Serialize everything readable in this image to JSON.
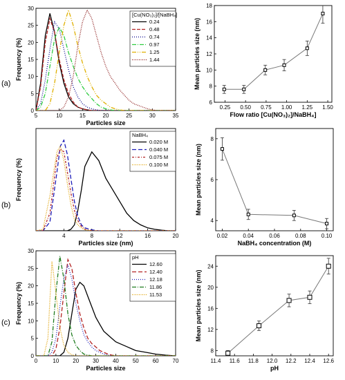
{
  "panel_labels": [
    "(a)",
    "(b)",
    "(c)"
  ],
  "chart_data": [
    {
      "type": "line",
      "xlabel": "Particles size",
      "ylabel": "Frequency (%)",
      "xlim": [
        5,
        35
      ],
      "ylim": [
        0,
        30
      ],
      "xticks": [
        5,
        10,
        15,
        20,
        25,
        30,
        35
      ],
      "yticks": [
        0,
        5,
        10,
        15,
        20,
        25,
        30
      ],
      "legend_title": "[Cu(NO₃)₂]/[NaBH₄]",
      "legend_position": "top-right",
      "x": [
        5,
        6,
        7,
        8,
        9,
        10,
        11,
        12,
        13,
        14,
        15,
        16,
        17,
        18,
        19,
        20,
        21,
        22,
        23,
        24,
        25,
        26,
        27,
        28,
        29,
        30,
        31,
        32,
        33,
        34,
        35
      ],
      "series": [
        {
          "name": "0.24",
          "color": "#000000",
          "dash": "",
          "values": [
            0,
            8,
            22,
            28.5,
            23,
            14,
            8,
            4,
            2,
            1,
            0.5,
            0.2,
            0,
            0,
            0,
            0,
            0,
            0,
            0,
            0,
            0,
            0,
            0,
            0,
            0,
            0,
            0,
            0,
            0,
            0,
            0
          ]
        },
        {
          "name": "0.48",
          "color": "#b22222",
          "dash": "5,2",
          "values": [
            0,
            7,
            20,
            27,
            23,
            15,
            9,
            5,
            2.5,
            1,
            0.5,
            0.2,
            0,
            0,
            0,
            0,
            0,
            0,
            0,
            0,
            0,
            0,
            0,
            0,
            0,
            0,
            0,
            0,
            0,
            0,
            0
          ]
        },
        {
          "name": "0.74",
          "color": "#00008b",
          "dash": "1,2",
          "values": [
            0,
            2,
            9,
            18,
            26,
            24,
            18,
            12,
            7,
            4,
            2,
            1,
            0.5,
            0.2,
            0,
            0,
            0,
            0,
            0,
            0,
            0,
            0,
            0,
            0,
            0,
            0,
            0,
            0,
            0,
            0,
            0
          ]
        },
        {
          "name": "0.97",
          "color": "#2ecc40",
          "dash": "6,2,1,2",
          "values": [
            0,
            1,
            5,
            13,
            21,
            24.5,
            22,
            17,
            13,
            9.5,
            7,
            5,
            3.5,
            2,
            1,
            0.5,
            0.2,
            0,
            0,
            0,
            0,
            0,
            0,
            0,
            0,
            0,
            0,
            0,
            0,
            0,
            0
          ]
        },
        {
          "name": "1.25",
          "color": "#e0b000",
          "dash": "6,2,1,2,1,2",
          "values": [
            0,
            0,
            0,
            2,
            8,
            17,
            25,
            29.5,
            25,
            19,
            14,
            10,
            7,
            4.5,
            3,
            2,
            1,
            0.5,
            0.2,
            0,
            0,
            0,
            0,
            0,
            0,
            0,
            0,
            0,
            0,
            0,
            0
          ]
        },
        {
          "name": "1.44",
          "color": "#8b1a1a",
          "dash": "1,1.5",
          "values": [
            0,
            0,
            0,
            0,
            0,
            0,
            1,
            4,
            10,
            19,
            26,
            29.5,
            27,
            22,
            17,
            13,
            10,
            8,
            6,
            4.5,
            3,
            2,
            1.5,
            1,
            0.5,
            0.2,
            0,
            0,
            0,
            0,
            0
          ]
        }
      ]
    },
    {
      "type": "line",
      "xlabel": "Flow ratio [Cu(NO₃)₂]/NaBH₄]",
      "ylabel": "Mean particles size (nm)",
      "xlim": [
        0.12,
        1.55
      ],
      "ylim": [
        6,
        18
      ],
      "xticks": [
        0.25,
        0.5,
        0.75,
        1.0,
        1.25,
        1.5
      ],
      "xtick_labels": [
        "0.25",
        "0.50",
        "0.75",
        "1.00",
        "1.25",
        "1.50"
      ],
      "yticks": [
        6,
        8,
        10,
        12,
        14,
        16,
        18
      ],
      "series": [
        {
          "x": [
            0.24,
            0.48,
            0.74,
            0.97,
            1.25,
            1.44
          ],
          "values": [
            7.6,
            7.6,
            10.0,
            10.6,
            12.7,
            17.0
          ],
          "error": [
            0.5,
            0.5,
            0.6,
            0.7,
            0.9,
            1.2
          ]
        }
      ]
    },
    {
      "type": "line",
      "xlabel": "Particles size (nm)",
      "ylabel": "Frequency (%)",
      "xlim": [
        0,
        20
      ],
      "ylim": [
        0,
        35
      ],
      "xticks": [
        4,
        8,
        12,
        16,
        20
      ],
      "yticks": [],
      "legend_title": "NaBH₄",
      "legend_position": "top-right",
      "x": [
        0,
        1,
        2,
        3,
        3.5,
        4,
        4.5,
        5,
        5.5,
        6,
        6.5,
        7,
        8,
        9,
        10,
        11,
        12,
        13,
        14,
        15,
        16,
        17,
        18,
        19,
        20
      ],
      "series": [
        {
          "name": "0.020 M",
          "color": "#000000",
          "dash": "",
          "values": [
            0,
            0,
            0,
            0,
            0,
            0,
            0,
            0.5,
            2,
            7,
            14,
            22,
            27,
            24,
            18,
            14,
            10,
            6,
            3.5,
            2,
            1,
            0.5,
            0.2,
            0,
            0
          ]
        },
        {
          "name": "0.040 M",
          "color": "#1c1cb8",
          "dash": "6,3",
          "values": [
            0,
            0,
            3,
            20,
            29,
            31,
            26,
            18,
            10,
            5,
            2,
            1,
            0.3,
            0,
            0,
            0,
            0,
            0,
            0,
            0,
            0,
            0,
            0,
            0,
            0
          ]
        },
        {
          "name": "0.075 M",
          "color": "#b22222",
          "dash": "3,2,1,2",
          "values": [
            0,
            0,
            6,
            25,
            28,
            27,
            20,
            13,
            7,
            3.5,
            1.5,
            0.5,
            0,
            0,
            0,
            0,
            0,
            0,
            0,
            0,
            0,
            0,
            0,
            0,
            0
          ]
        },
        {
          "name": "0.100 M",
          "color": "#e0a000",
          "dash": "1,1.5",
          "values": [
            0,
            0.5,
            12,
            27,
            29,
            24,
            16,
            9,
            4,
            2,
            1,
            0.3,
            0,
            0,
            0,
            0,
            0,
            0,
            0,
            0,
            0,
            0,
            0,
            0,
            0
          ]
        }
      ]
    },
    {
      "type": "line",
      "xlabel": "NaBH₄ concentration (M)",
      "ylabel": "Mean particles size (nm)",
      "xlim": [
        0.015,
        0.105
      ],
      "ylim": [
        3.5,
        8.5
      ],
      "xticks": [
        0.02,
        0.04,
        0.06,
        0.08,
        0.1
      ],
      "xtick_labels": [
        "0.02",
        "0.04",
        "0.06",
        "0.08",
        "0.10"
      ],
      "yticks": [
        4,
        6,
        8
      ],
      "series": [
        {
          "x": [
            0.02,
            0.04,
            0.075,
            0.1
          ],
          "values": [
            7.5,
            4.3,
            4.25,
            3.85
          ],
          "error": [
            0.55,
            0.25,
            0.25,
            0.25
          ]
        }
      ]
    },
    {
      "type": "line",
      "xlabel": "Particles size",
      "ylabel": "Frequency (%)",
      "xlim": [
        0,
        70
      ],
      "ylim": [
        0,
        30
      ],
      "xticks": [
        0,
        10,
        20,
        30,
        40,
        50,
        60,
        70
      ],
      "yticks": [
        0,
        5,
        10,
        15,
        20,
        25,
        30
      ],
      "legend_title": "pH",
      "legend_position": "top-right",
      "x": [
        0,
        2,
        4,
        6,
        8,
        10,
        12,
        14,
        16,
        18,
        20,
        22,
        24,
        26,
        28,
        30,
        32,
        34,
        36,
        38,
        40,
        42,
        44,
        46,
        48,
        50,
        55,
        60,
        65,
        70
      ],
      "series": [
        {
          "name": "12.60",
          "color": "#000000",
          "dash": "",
          "values": [
            0,
            0,
            0,
            0,
            0,
            0,
            0,
            1,
            5,
            12,
            19,
            21,
            20,
            17,
            14,
            11,
            9,
            7,
            6,
            5,
            4,
            3.5,
            3,
            2.5,
            2,
            1.5,
            1,
            0.5,
            0.2,
            0
          ]
        },
        {
          "name": "12.40",
          "color": "#b22222",
          "dash": "6,3",
          "values": [
            0,
            0,
            0,
            0,
            0,
            2,
            8,
            18,
            27.5,
            25,
            18,
            12,
            8,
            5,
            3.5,
            2.5,
            1.5,
            1,
            0.5,
            0.2,
            0,
            0,
            0,
            0,
            0,
            0,
            0,
            0,
            0,
            0
          ]
        },
        {
          "name": "12.18",
          "color": "#1c1cb8",
          "dash": "1,2",
          "values": [
            0,
            0,
            0,
            0,
            1,
            5,
            14,
            22,
            26,
            22,
            15,
            10,
            6,
            4,
            2.5,
            1.5,
            1,
            0.5,
            0.2,
            0,
            0,
            0,
            0,
            0,
            0,
            0,
            0,
            0,
            0,
            0
          ]
        },
        {
          "name": "11.86",
          "color": "#1e7b1e",
          "dash": "6,2,1,2",
          "values": [
            0,
            0,
            0,
            0,
            4,
            18,
            28.5,
            22,
            12,
            6,
            3,
            1.5,
            0.5,
            0.2,
            0,
            0,
            0,
            0,
            0,
            0,
            0,
            0,
            0,
            0,
            0,
            0,
            0,
            0,
            0,
            0
          ]
        },
        {
          "name": "11.53",
          "color": "#e0a000",
          "dash": "1,1.5",
          "values": [
            0,
            0,
            0,
            5,
            27,
            18,
            8,
            3,
            1,
            0.3,
            0,
            0,
            0,
            0,
            0,
            0,
            0,
            0,
            0,
            0,
            0,
            0,
            0,
            0,
            0,
            0,
            0,
            0,
            0,
            0
          ]
        }
      ]
    },
    {
      "type": "line",
      "xlabel": "pH",
      "ylabel": "Mean particles size (nm)",
      "xlim": [
        11.4,
        12.65
      ],
      "ylim": [
        7,
        26
      ],
      "xticks": [
        11.4,
        11.6,
        11.8,
        12.0,
        12.2,
        12.4,
        12.6
      ],
      "xtick_labels": [
        "11.4",
        "11.6",
        "11.8",
        "12.0",
        "12.2",
        "12.4",
        "12.6"
      ],
      "yticks": [
        8,
        12,
        16,
        20,
        24
      ],
      "series": [
        {
          "x": [
            11.53,
            11.86,
            12.18,
            12.4,
            12.6
          ],
          "values": [
            7.5,
            12.7,
            17.5,
            18.1,
            24.0
          ],
          "error": [
            0.5,
            0.9,
            1.2,
            1.2,
            1.5
          ]
        }
      ]
    }
  ]
}
